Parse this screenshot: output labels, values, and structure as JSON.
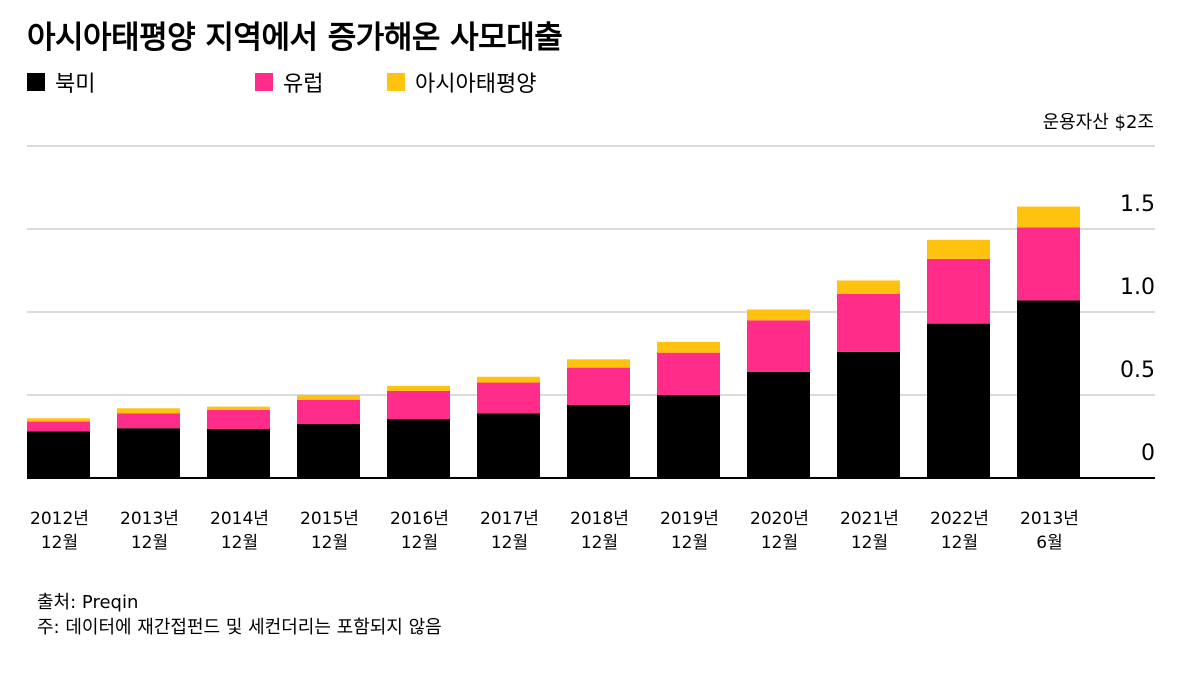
{
  "title": "아시아태평양 지역에서 증가해온 사모대출",
  "unit_label": "운용자산 $2조",
  "legend": [
    {
      "name": "북미",
      "color": "#000000"
    },
    {
      "name": "유럽",
      "color": "#ff2d89"
    },
    {
      "name": "아시아태평양",
      "color": "#ffc20e"
    }
  ],
  "chart_data": {
    "type": "bar",
    "stacked": true,
    "categories": [
      [
        "2012년",
        "12월"
      ],
      [
        "2013년",
        "12월"
      ],
      [
        "2014년",
        "12월"
      ],
      [
        "2015년",
        "12월"
      ],
      [
        "2016년",
        "12월"
      ],
      [
        "2017년",
        "12월"
      ],
      [
        "2018년",
        "12월"
      ],
      [
        "2019년",
        "12월"
      ],
      [
        "2020년",
        "12월"
      ],
      [
        "2021년",
        "12월"
      ],
      [
        "2022년",
        "12월"
      ],
      [
        "2013년",
        "6월"
      ]
    ],
    "series": [
      {
        "name": "북미",
        "color": "#000000",
        "values": [
          0.28,
          0.3,
          0.295,
          0.325,
          0.355,
          0.39,
          0.44,
          0.5,
          0.64,
          0.76,
          0.93,
          1.07
        ]
      },
      {
        "name": "유럽",
        "color": "#ff2d89",
        "values": [
          0.06,
          0.09,
          0.115,
          0.145,
          0.17,
          0.185,
          0.225,
          0.255,
          0.31,
          0.35,
          0.39,
          0.44
        ]
      },
      {
        "name": "아시아태평양",
        "color": "#ffc20e",
        "values": [
          0.02,
          0.03,
          0.02,
          0.03,
          0.03,
          0.035,
          0.05,
          0.065,
          0.065,
          0.08,
          0.115,
          0.125
        ]
      }
    ],
    "yticks": [
      "0",
      "0.5",
      "1.0",
      "1.5"
    ],
    "ylim": [
      0,
      2.0
    ],
    "grid": true,
    "legend_position": "top-left"
  },
  "notes": [
    "출처: Preqin",
    "주: 데이터에 재간접펀드 및 세컨더리는 포함되지 않음"
  ]
}
